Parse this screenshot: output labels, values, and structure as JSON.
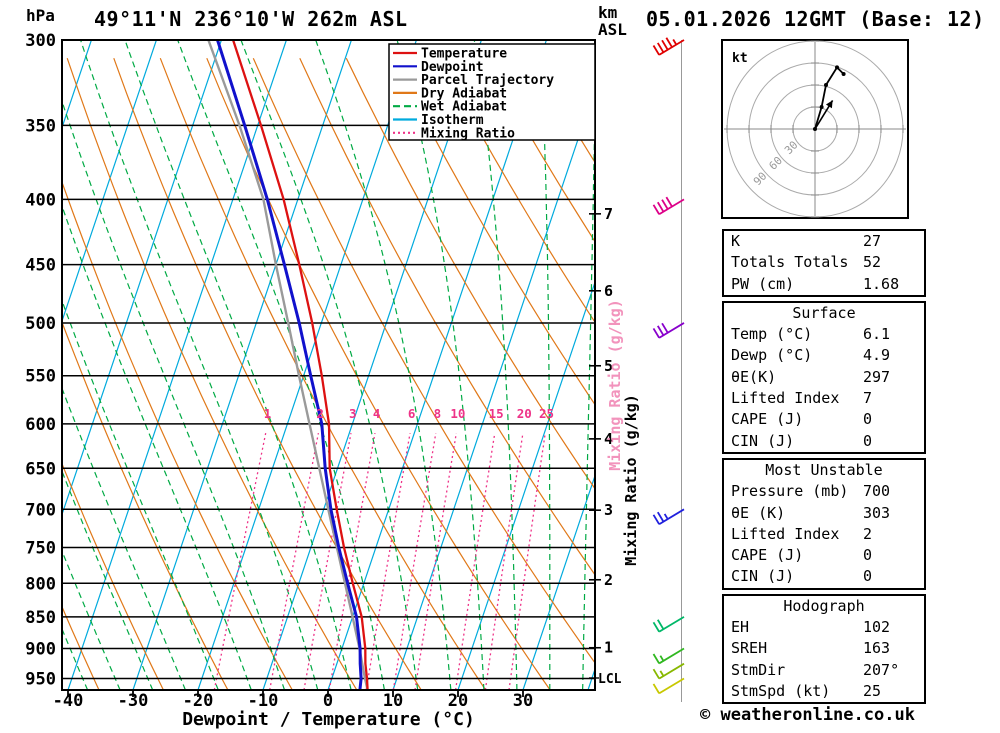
{
  "header": {
    "pressure_unit": "hPa",
    "station_title": "49°11'N 236°10'W 262m ASL",
    "altitude_unit_line1": "km",
    "altitude_unit_line2": "ASL",
    "date_title": "05.01.2026 12GMT (Base: 12)"
  },
  "axes": {
    "pressure_ticks": [
      300,
      350,
      400,
      450,
      500,
      550,
      600,
      650,
      700,
      750,
      800,
      850,
      900,
      950
    ],
    "temp_ticks": [
      -40,
      -30,
      -20,
      -10,
      0,
      10,
      20,
      30
    ],
    "km_ticks": [
      7,
      6,
      5,
      4,
      3,
      2,
      1
    ],
    "xlabel": "Dewpoint / Temperature (°C)",
    "right_label": "Mixing Ratio (g/kg)",
    "lcl_label": "LCL",
    "mixing_ratio_values": [
      1,
      2,
      3,
      4,
      6,
      8,
      10,
      15,
      20,
      25
    ]
  },
  "legend": [
    {
      "label": "Temperature",
      "color": "#dd1111",
      "style": "solid"
    },
    {
      "label": "Dewpoint",
      "color": "#1111cc",
      "style": "solid"
    },
    {
      "label": "Parcel Trajectory",
      "color": "#9a9a9a",
      "style": "solid"
    },
    {
      "label": "Dry Adiabat",
      "color": "#e07818",
      "style": "solid"
    },
    {
      "label": "Wet Adiabat",
      "color": "#00aa44",
      "style": "dashed"
    },
    {
      "label": "Isotherm",
      "color": "#00aadd",
      "style": "solid"
    },
    {
      "label": "Mixing Ratio",
      "color": "#ee3388",
      "style": "dotted"
    }
  ],
  "chart_data": {
    "type": "line",
    "subtype": "skew-t-log-p-sounding",
    "title": "49°11'N 236°10'W 262m ASL",
    "run": "05.01.2026 12GMT (Base: 12)",
    "pressure_range_hpa": [
      300,
      970
    ],
    "temp_axis_range_c": [
      -41,
      41
    ],
    "levels": [
      {
        "p": 970,
        "t": 6.1,
        "td": 4.9,
        "parcel": 6.1
      },
      {
        "p": 950,
        "t": 5.4,
        "td": 4.5,
        "parcel": 5.1
      },
      {
        "p": 925,
        "t": 4.4,
        "td": 3.6,
        "parcel": 3.9
      },
      {
        "p": 900,
        "t": 3.6,
        "td": 2.8,
        "parcel": 2.7
      },
      {
        "p": 850,
        "t": 1.4,
        "td": 0.6,
        "parcel": 0.0
      },
      {
        "p": 800,
        "t": -1.7,
        "td": -2.5,
        "parcel": -2.9
      },
      {
        "p": 750,
        "t": -4.9,
        "td": -5.7,
        "parcel": -6.0
      },
      {
        "p": 700,
        "t": -8.0,
        "td": -8.9,
        "parcel": -9.3
      },
      {
        "p": 650,
        "t": -11.2,
        "td": -11.9,
        "parcel": -12.8
      },
      {
        "p": 600,
        "t": -13.6,
        "td": -14.7,
        "parcel": -16.6
      },
      {
        "p": 550,
        "t": -17.2,
        "td": -18.9,
        "parcel": -20.7
      },
      {
        "p": 500,
        "t": -21.4,
        "td": -23.4,
        "parcel": -25.1
      },
      {
        "p": 450,
        "t": -26.4,
        "td": -28.7,
        "parcel": -30.0
      },
      {
        "p": 400,
        "t": -32.2,
        "td": -34.7,
        "parcel": -35.3
      },
      {
        "p": 350,
        "t": -39.5,
        "td": -42.0,
        "parcel": -42.8
      },
      {
        "p": 300,
        "t": -48.2,
        "td": -50.6,
        "parcel": -52.0
      }
    ],
    "winds": [
      {
        "p": 300,
        "speed_kt": 45,
        "color": "#e00000"
      },
      {
        "p": 400,
        "speed_kt": 40,
        "color": "#dd0088"
      },
      {
        "p": 500,
        "speed_kt": 30,
        "color": "#8800cc"
      },
      {
        "p": 700,
        "speed_kt": 25,
        "color": "#2020dd"
      },
      {
        "p": 850,
        "speed_kt": 20,
        "color": "#00b868"
      },
      {
        "p": 900,
        "speed_kt": 15,
        "color": "#30b820"
      },
      {
        "p": 925,
        "speed_kt": 15,
        "color": "#88b800"
      },
      {
        "p": 950,
        "speed_kt": 10,
        "color": "#c8c800"
      }
    ],
    "hodograph": {
      "unit_label": "kt",
      "rings": [
        10,
        20,
        30,
        40
      ],
      "ring_labels": [
        "30",
        "60",
        "90"
      ],
      "trace_uv": [
        [
          0,
          0
        ],
        [
          3,
          10
        ],
        [
          5,
          20
        ],
        [
          10,
          28
        ],
        [
          13,
          25
        ]
      ],
      "storm_vector_uv": [
        8,
        13
      ]
    }
  },
  "tables": {
    "sections": [
      {
        "title": "",
        "rows": [
          {
            "label": "K",
            "value": "27"
          },
          {
            "label": "Totals Totals",
            "value": "52"
          },
          {
            "label": "PW (cm)",
            "value": "1.68"
          }
        ]
      },
      {
        "title": "Surface",
        "rows": [
          {
            "label": "Temp (°C)",
            "value": "6.1"
          },
          {
            "label": "Dewp (°C)",
            "value": "4.9"
          },
          {
            "label": "θE(K)",
            "value": "297"
          },
          {
            "label": "Lifted Index",
            "value": "7"
          },
          {
            "label": "CAPE (J)",
            "value": "0"
          },
          {
            "label": "CIN (J)",
            "value": "0"
          }
        ]
      },
      {
        "title": "Most Unstable",
        "rows": [
          {
            "label": "Pressure (mb)",
            "value": "700"
          },
          {
            "label": "θE (K)",
            "value": "303"
          },
          {
            "label": "Lifted Index",
            "value": "2"
          },
          {
            "label": "CAPE (J)",
            "value": "0"
          },
          {
            "label": "CIN (J)",
            "value": "0"
          }
        ]
      },
      {
        "title": "Hodograph",
        "rows": [
          {
            "label": "EH",
            "value": "102"
          },
          {
            "label": "SREH",
            "value": "163"
          },
          {
            "label": "StmDir",
            "value": "207°"
          },
          {
            "label": "StmSpd (kt)",
            "value": "25"
          }
        ]
      }
    ]
  },
  "footer": {
    "copyright": "© weatheronline.co.uk"
  }
}
